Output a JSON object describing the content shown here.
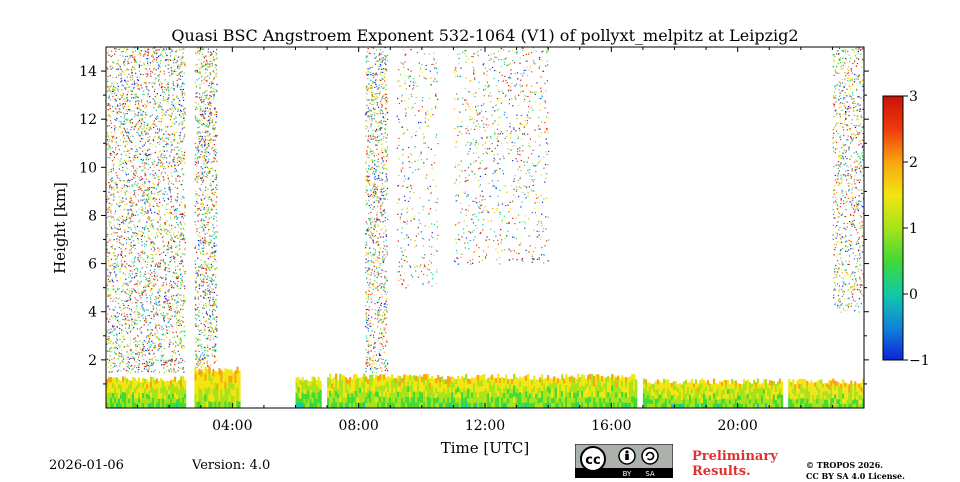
{
  "chart_data": {
    "type": "heatmap",
    "title": "Quasi BSC Angstroem Exponent 532-1064 (V1) of pollyxt_melpitz at Leipzig2",
    "xlabel": "Time [UTC]",
    "ylabel": "Height [km]",
    "xlim": [
      0,
      24
    ],
    "ylim": [
      0,
      15
    ],
    "xticks": [
      4,
      8,
      12,
      16,
      20
    ],
    "xtick_labels": [
      "04:00",
      "08:00",
      "12:00",
      "16:00",
      "20:00"
    ],
    "yticks": [
      2,
      4,
      6,
      8,
      10,
      12,
      14
    ],
    "ytick_labels": [
      "2",
      "4",
      "6",
      "8",
      "10",
      "12",
      "14"
    ],
    "colorbar": {
      "range": [
        -1,
        3
      ],
      "ticks": [
        -1,
        0,
        1,
        2,
        3
      ],
      "tick_labels": [
        "−1",
        "0",
        "1",
        "2",
        "3"
      ],
      "colors": [
        "#0b24d8",
        "#1185d8",
        "#12c9a8",
        "#41d936",
        "#a8e21a",
        "#f3e512",
        "#f8a40f",
        "#ee3a0c",
        "#cc1007"
      ]
    },
    "layers": [
      {
        "name": "boundary-layer",
        "t_start": 0.0,
        "t_end": 2.5,
        "top_km": 1.2,
        "value": 0.9
      },
      {
        "name": "boundary-layer",
        "t_start": 2.8,
        "t_end": 4.2,
        "top_km": 1.6,
        "value": 1.1
      },
      {
        "name": "boundary-layer",
        "t_start": 6.0,
        "t_end": 6.8,
        "top_km": 1.2,
        "value": 0.8
      },
      {
        "name": "boundary-layer",
        "t_start": 7.0,
        "t_end": 16.8,
        "top_km": 1.3,
        "value": 0.9
      },
      {
        "name": "boundary-layer",
        "t_start": 17.0,
        "t_end": 21.4,
        "top_km": 1.1,
        "value": 0.9
      },
      {
        "name": "boundary-layer",
        "t_start": 21.6,
        "t_end": 24.0,
        "top_km": 1.1,
        "value": 1.0
      }
    ],
    "data_gaps": [
      [
        2.5,
        2.8
      ],
      [
        4.2,
        6.0
      ],
      [
        6.8,
        7.0
      ],
      [
        16.8,
        17.0
      ],
      [
        21.4,
        21.6
      ]
    ],
    "noise_regions": [
      {
        "t_start": 0.0,
        "t_end": 2.5,
        "h_min": 1.5,
        "h_max": 15.0,
        "density": 0.35
      },
      {
        "t_start": 2.8,
        "t_end": 3.5,
        "h_min": 1.5,
        "h_max": 15.0,
        "density": 0.45
      },
      {
        "t_start": 8.2,
        "t_end": 8.9,
        "h_min": 1.5,
        "h_max": 15.0,
        "density": 0.4
      },
      {
        "t_start": 9.2,
        "t_end": 10.5,
        "h_min": 5.0,
        "h_max": 15.0,
        "density": 0.1
      },
      {
        "t_start": 11.0,
        "t_end": 14.0,
        "h_min": 6.0,
        "h_max": 15.0,
        "density": 0.12
      },
      {
        "t_start": 23.0,
        "t_end": 24.0,
        "h_min": 4.0,
        "h_max": 15.0,
        "density": 0.3
      }
    ]
  },
  "footer": {
    "date": "2026-01-06",
    "version": "Version: 4.0",
    "preliminary_line1": "Preliminary",
    "preliminary_line2": "Results.",
    "copyright_line1": "© TROPOS 2026.",
    "copyright_line2": "CC BY SA 4.0 License.",
    "license_badge_left": "BY",
    "license_badge_right": "SA"
  }
}
